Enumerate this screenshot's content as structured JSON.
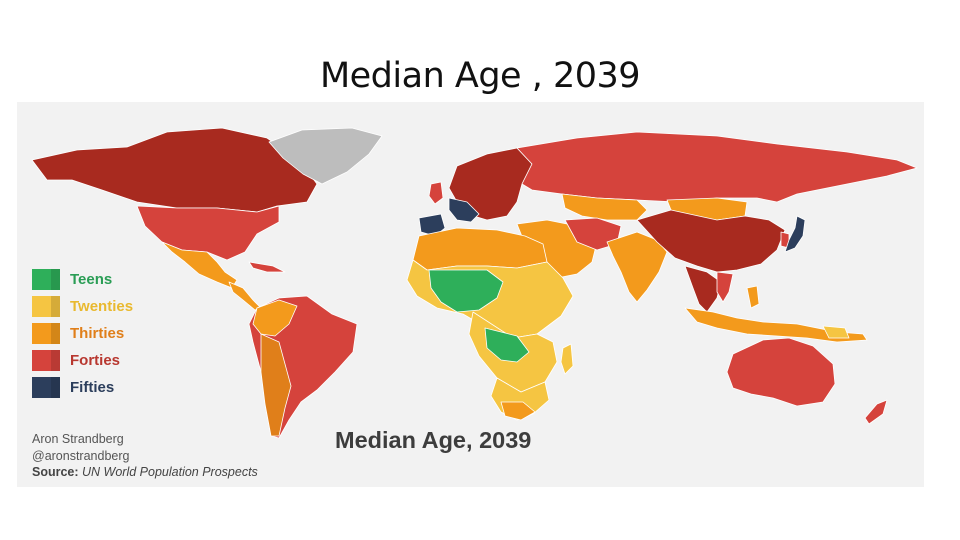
{
  "slide": {
    "title": "Median Age , 2039"
  },
  "map": {
    "title": "Median Age, 2039",
    "legend": [
      {
        "label": "Teens",
        "color": "#2eaf5a",
        "text_color": "#2a9d55"
      },
      {
        "label": "Twenties",
        "color": "#f5c542",
        "text_color": "#e9b92f"
      },
      {
        "label": "Thirties",
        "color": "#f39a1c",
        "text_color": "#e07f1a"
      },
      {
        "label": "Forties",
        "color": "#d5433c",
        "text_color": "#b83830"
      },
      {
        "label": "Fifties",
        "color": "#2c3e5c",
        "text_color": "#2c3e5c"
      }
    ],
    "no_data_color": "#bdbdbd",
    "credits": {
      "author": "Aron Strandberg",
      "handle": "@aronstrandberg",
      "source_label": "Source:",
      "source_value": "UN World Population Prospects"
    }
  }
}
